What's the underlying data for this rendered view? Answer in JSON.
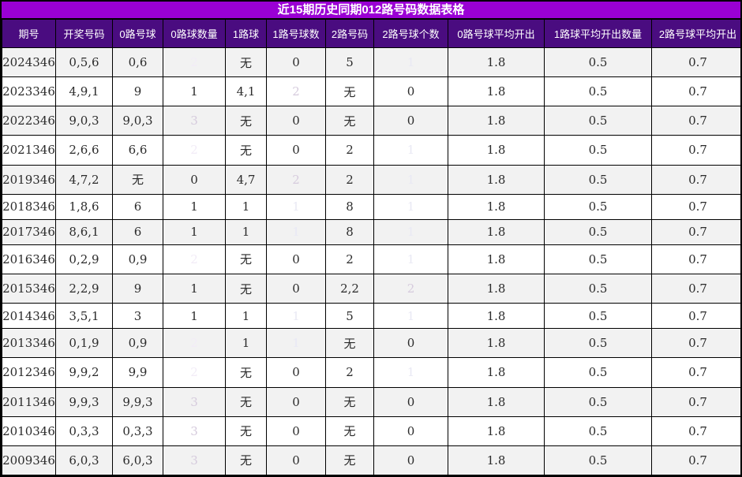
{
  "title": "近15期历史同期012路号码数据表格",
  "colors": {
    "title_bar_bg": "#9a00d4",
    "header_bg": "#4a0c80",
    "row_bg": "#ffffff",
    "row_alt_bg": "#f2f2f2",
    "average_col_bg": "#eff8f7",
    "count_pale": "#eff8f7",
    "count_light_blue": "#a9c6e1",
    "count_mid_purple": "#8a5db4",
    "count_dark_purple": "#4a0d58",
    "count_blue_violet": "#8e93c8",
    "grid_border": "#000000"
  },
  "table": {
    "columns": [
      "期号",
      "开奖号码",
      "0路号球",
      "0路球数量",
      "1路球",
      "1路号球数",
      "2路号码",
      "2路号球个数",
      "0路号球平均开出",
      "1路球平均开出数量",
      "2路号球平均开出"
    ],
    "rows": [
      {
        "cells": [
          "2024346",
          "0,5,6",
          "0,6",
          "2",
          "无",
          "0",
          "5",
          "1",
          "1.8",
          "0.5",
          "0.7"
        ],
        "styles": {
          "3": "mid-purple",
          "5": "pale",
          "7": "blue-violet"
        }
      },
      {
        "cells": [
          "2023346",
          "4,9,1",
          "9",
          "1",
          "4,1",
          "2",
          "无",
          "0",
          "1.8",
          "0.5",
          "0.7"
        ],
        "styles": {
          "3": "light-blue",
          "5": "dark-purple",
          "7": "pale"
        }
      },
      {
        "cells": [
          "2022346",
          "9,0,3",
          "9,0,3",
          "3",
          "无",
          "0",
          "无",
          "0",
          "1.8",
          "0.5",
          "0.7"
        ],
        "styles": {
          "3": "dark-purple",
          "5": "pale",
          "7": "pale"
        }
      },
      {
        "cells": [
          "2021346",
          "2,6,6",
          "6,6",
          "2",
          "无",
          "0",
          "2",
          "1",
          "1.8",
          "0.5",
          "0.7"
        ],
        "styles": {
          "3": "mid-purple",
          "5": "pale",
          "7": "blue-violet"
        }
      },
      {
        "cells": [
          "2019346",
          "4,7,2",
          "无",
          "0",
          "4,7",
          "2",
          "2",
          "1",
          "1.8",
          "0.5",
          "0.7"
        ],
        "styles": {
          "3": "pale",
          "5": "dark-purple",
          "7": "blue-violet"
        }
      },
      {
        "cells": [
          "2018346",
          "1,8,6",
          "6",
          "1",
          "1",
          "1",
          "8",
          "1",
          "1.8",
          "0.5",
          "0.7"
        ],
        "styles": {
          "3": "light-blue",
          "5": "blue-violet",
          "7": "blue-violet"
        }
      },
      {
        "cells": [
          "2017346",
          "8,6,1",
          "6",
          "1",
          "1",
          "1",
          "8",
          "1",
          "1.8",
          "0.5",
          "0.7"
        ],
        "styles": {
          "3": "light-blue",
          "5": "blue-violet",
          "7": "blue-violet"
        }
      },
      {
        "cells": [
          "2016346",
          "0,2,9",
          "0,9",
          "2",
          "无",
          "0",
          "2",
          "1",
          "1.8",
          "0.5",
          "0.7"
        ],
        "styles": {
          "3": "mid-purple",
          "5": "pale",
          "7": "blue-violet"
        }
      },
      {
        "cells": [
          "2015346",
          "2,2,9",
          "9",
          "1",
          "无",
          "0",
          "2,2",
          "2",
          "1.8",
          "0.5",
          "0.7"
        ],
        "styles": {
          "3": "light-blue",
          "5": "pale",
          "7": "dark-purple"
        }
      },
      {
        "cells": [
          "2014346",
          "3,5,1",
          "3",
          "1",
          "1",
          "1",
          "5",
          "1",
          "1.8",
          "0.5",
          "0.7"
        ],
        "styles": {
          "3": "light-blue",
          "5": "blue-violet",
          "7": "blue-violet"
        }
      },
      {
        "cells": [
          "2013346",
          "0,1,9",
          "0,9",
          "2",
          "1",
          "1",
          "无",
          "0",
          "1.8",
          "0.5",
          "0.7"
        ],
        "styles": {
          "3": "mid-purple",
          "5": "blue-violet",
          "7": "pale"
        }
      },
      {
        "cells": [
          "2012346",
          "9,9,2",
          "9,9",
          "2",
          "无",
          "0",
          "2",
          "1",
          "1.8",
          "0.5",
          "0.7"
        ],
        "styles": {
          "3": "mid-purple",
          "5": "pale",
          "7": "blue-violet"
        }
      },
      {
        "cells": [
          "2011346",
          "9,9,3",
          "9,9,3",
          "3",
          "无",
          "0",
          "无",
          "0",
          "1.8",
          "0.5",
          "0.7"
        ],
        "styles": {
          "3": "dark-purple",
          "5": "pale",
          "7": "pale"
        }
      },
      {
        "cells": [
          "2010346",
          "0,3,3",
          "0,3,3",
          "3",
          "无",
          "0",
          "无",
          "0",
          "1.8",
          "0.5",
          "0.7"
        ],
        "styles": {
          "3": "dark-purple",
          "5": "pale",
          "7": "pale"
        }
      },
      {
        "cells": [
          "2009346",
          "6,0,3",
          "6,0,3",
          "3",
          "无",
          "0",
          "无",
          "0",
          "1.8",
          "0.5",
          "0.7"
        ],
        "styles": {
          "3": "dark-purple",
          "5": "pale",
          "7": "pale"
        }
      }
    ]
  }
}
